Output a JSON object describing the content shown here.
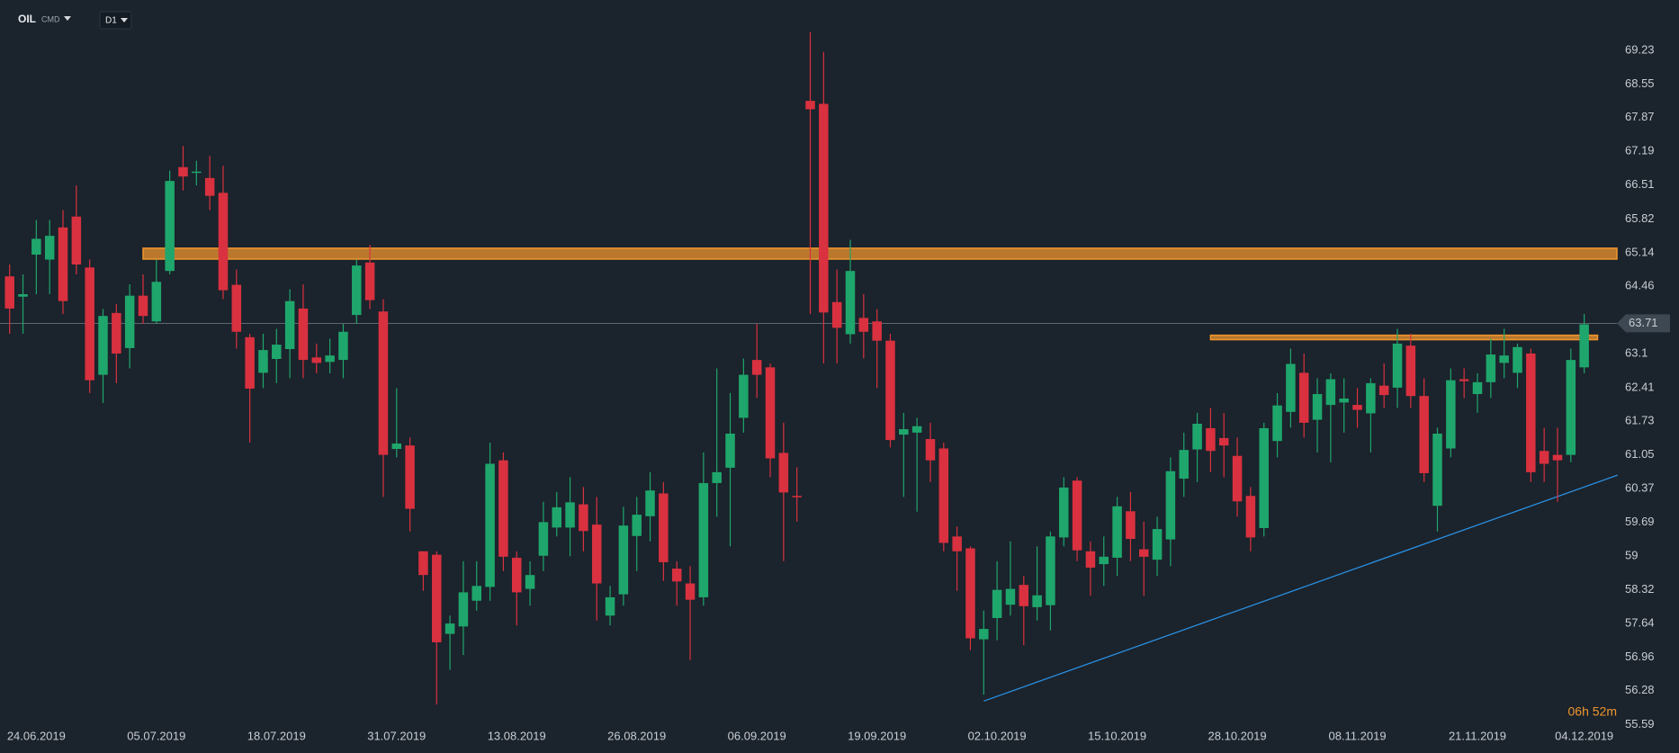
{
  "header": {
    "symbol": "OIL",
    "market": "CMD",
    "timeframe": "D1"
  },
  "chart_data": {
    "type": "candlestick",
    "categories": [
      null,
      null,
      "24.06.2019",
      null,
      null,
      null,
      null,
      null,
      null,
      null,
      null,
      "05.07.2019",
      null,
      null,
      null,
      null,
      null,
      null,
      null,
      null,
      "18.07.2019",
      null,
      null,
      null,
      null,
      null,
      null,
      null,
      null,
      "31.07.2019",
      null,
      null,
      null,
      null,
      null,
      null,
      null,
      null,
      "13.08.2019",
      null,
      null,
      null,
      null,
      null,
      null,
      null,
      null,
      "26.08.2019",
      null,
      null,
      null,
      null,
      null,
      null,
      null,
      null,
      "06.09.2019",
      null,
      null,
      null,
      null,
      null,
      null,
      null,
      null,
      "19.09.2019",
      null,
      null,
      null,
      null,
      null,
      null,
      null,
      null,
      "02.10.2019",
      null,
      null,
      null,
      null,
      null,
      null,
      null,
      null,
      "15.10.2019",
      null,
      null,
      null,
      null,
      null,
      null,
      null,
      null,
      "28.10.2019",
      null,
      null,
      null,
      null,
      null,
      null,
      null,
      null,
      "08.11.2019",
      null,
      null,
      null,
      null,
      null,
      null,
      null,
      null,
      "21.11.2019",
      null,
      null,
      null,
      null,
      null,
      null,
      null,
      "04.12.2019"
    ],
    "open": [
      64.66,
      64.25,
      65.1,
      65.0,
      65.65,
      65.87,
      64.84,
      62.67,
      63.92,
      63.21,
      64.27,
      63.75,
      64.77,
      66.87,
      66.78,
      66.65,
      66.35,
      64.49,
      63.43,
      62.71,
      62.99,
      63.19,
      64.01,
      63.02,
      62.93,
      62.97,
      63.88,
      64.94,
      63.95,
      61.17,
      61.24,
      59.1,
      59.03,
      57.43,
      57.58,
      58.1,
      58.38,
      60.94,
      58.97,
      58.34,
      59.01,
      59.58,
      59.58,
      60.05,
      59.64,
      57.8,
      58.23,
      59.41,
      59.81,
      60.27,
      58.75,
      58.45,
      58.17,
      60.48,
      60.79,
      61.8,
      62.97,
      62.82,
      61.09,
      60.22,
      68.21,
      68.15,
      64.14,
      63.49,
      63.82,
      63.75,
      63.36,
      61.46,
      61.5,
      61.37,
      61.18,
      59.4,
      59.16,
      57.32,
      57.75,
      58.02,
      58.42,
      57.97,
      58.01,
      59.38,
      60.53,
      59.1,
      58.84,
      58.97,
      59.91,
      59.14,
      58.93,
      59.34,
      60.57,
      61.16,
      61.59,
      61.39,
      61.03,
      60.22,
      59.57,
      61.33,
      61.92,
      62.71,
      61.76,
      62.06,
      62.11,
      62.06,
      61.89,
      62.45,
      62.41,
      63.26,
      62.24,
      60.02,
      61.18,
      62.58,
      62.28,
      62.52,
      62.91,
      62.71,
      63.1,
      61.13,
      61.05,
      61.05,
      62.82
    ],
    "high": [
      64.9,
      64.7,
      65.8,
      65.8,
      66.0,
      66.5,
      65.0,
      64.0,
      64.1,
      64.5,
      64.7,
      65.0,
      66.8,
      67.3,
      67.0,
      67.1,
      66.9,
      64.8,
      63.5,
      63.5,
      63.6,
      64.4,
      64.5,
      63.3,
      63.4,
      63.7,
      65.0,
      65.3,
      64.2,
      62.4,
      61.4,
      59.1,
      59.1,
      57.8,
      58.9,
      58.9,
      61.3,
      61.1,
      59.1,
      58.9,
      60.1,
      60.3,
      60.6,
      60.4,
      60.2,
      58.4,
      60.0,
      60.2,
      60.7,
      60.5,
      58.9,
      58.8,
      61.1,
      62.8,
      62.3,
      63.0,
      63.7,
      62.9,
      61.7,
      60.8,
      69.6,
      69.2,
      64.8,
      65.4,
      64.3,
      64.0,
      63.5,
      61.9,
      61.8,
      61.7,
      61.3,
      59.6,
      59.2,
      57.9,
      58.9,
      59.3,
      58.6,
      59.2,
      59.5,
      60.6,
      60.6,
      59.3,
      59.4,
      60.2,
      60.3,
      59.7,
      59.8,
      61.0,
      61.5,
      61.9,
      62.0,
      61.9,
      61.4,
      60.4,
      61.7,
      62.3,
      63.2,
      63.1,
      62.6,
      62.7,
      62.6,
      62.4,
      62.6,
      62.9,
      63.6,
      63.5,
      62.6,
      61.6,
      62.8,
      62.8,
      62.7,
      63.4,
      63.6,
      63.3,
      63.2,
      61.6,
      61.6,
      63.2,
      63.9
    ],
    "low": [
      63.5,
      63.5,
      64.3,
      64.3,
      63.9,
      64.7,
      62.3,
      62.1,
      62.5,
      62.8,
      63.7,
      63.7,
      64.7,
      66.4,
      66.5,
      66.0,
      64.2,
      63.2,
      61.3,
      62.4,
      62.5,
      62.6,
      62.6,
      62.7,
      62.7,
      62.6,
      63.7,
      64.0,
      60.2,
      61.0,
      59.5,
      58.3,
      56.0,
      56.7,
      57.0,
      57.9,
      58.1,
      58.7,
      57.6,
      58.0,
      58.7,
      59.4,
      59.0,
      59.1,
      57.7,
      57.6,
      58.0,
      58.7,
      59.3,
      58.5,
      58.0,
      56.9,
      58.0,
      59.8,
      59.2,
      61.5,
      62.2,
      60.6,
      58.9,
      59.7,
      63.9,
      62.9,
      62.9,
      63.3,
      63.0,
      62.4,
      61.2,
      60.2,
      59.9,
      60.5,
      59.1,
      58.3,
      57.1,
      56.2,
      57.3,
      57.8,
      57.2,
      57.7,
      57.5,
      59.2,
      58.9,
      58.2,
      58.4,
      58.6,
      58.9,
      58.2,
      58.6,
      58.8,
      60.2,
      60.5,
      60.7,
      60.6,
      59.8,
      59.1,
      59.4,
      61.0,
      61.6,
      61.4,
      61.1,
      60.9,
      61.5,
      61.6,
      61.1,
      62.0,
      62.0,
      62.0,
      60.5,
      59.5,
      61.0,
      62.2,
      61.9,
      62.2,
      62.6,
      62.4,
      60.5,
      60.5,
      60.1,
      60.9,
      62.7
    ],
    "close": [
      64.01,
      64.3,
      65.42,
      65.48,
      64.16,
      64.9,
      62.56,
      63.86,
      63.1,
      64.27,
      63.86,
      64.55,
      66.59,
      66.68,
      66.78,
      66.29,
      64.38,
      63.54,
      62.39,
      63.17,
      63.28,
      64.16,
      62.97,
      62.91,
      63.06,
      63.54,
      64.88,
      64.18,
      61.05,
      61.28,
      59.96,
      58.62,
      57.26,
      57.64,
      58.27,
      58.4,
      60.87,
      58.99,
      58.27,
      58.62,
      59.69,
      59.99,
      60.09,
      59.51,
      58.45,
      58.17,
      59.62,
      59.84,
      60.33,
      58.88,
      58.49,
      58.12,
      60.48,
      60.7,
      61.48,
      62.67,
      62.67,
      60.98,
      60.29,
      60.2,
      68.04,
      63.93,
      63.62,
      64.77,
      63.54,
      63.36,
      61.35,
      61.57,
      61.63,
      60.94,
      59.27,
      59.1,
      57.34,
      57.53,
      58.32,
      58.34,
      57.99,
      58.21,
      59.4,
      60.39,
      59.12,
      58.77,
      58.99,
      60.01,
      59.35,
      58.99,
      59.55,
      60.72,
      61.15,
      61.68,
      61.13,
      61.24,
      60.11,
      59.38,
      61.59,
      62.05,
      62.89,
      61.7,
      62.28,
      62.58,
      62.19,
      61.96,
      62.5,
      62.26,
      63.3,
      62.24,
      60.68,
      61.48,
      62.56,
      62.54,
      62.52,
      63.08,
      63.06,
      63.23,
      60.7,
      60.87,
      60.94,
      62.97,
      63.69
    ],
    "up_color": "#1fa66c",
    "down_color": "#d9313f",
    "ylim": [
      55.53,
      70.25
    ],
    "yticks": [
      69.23,
      68.55,
      67.87,
      67.19,
      66.51,
      65.82,
      65.14,
      64.46,
      63.1,
      62.41,
      61.73,
      61.05,
      60.37,
      59.69,
      59.0,
      58.32,
      57.64,
      56.96,
      56.28,
      55.59
    ],
    "grid": false,
    "last_price": 63.71,
    "zones": [
      {
        "start": 10,
        "end": 120.5,
        "low": 65.01,
        "high": 65.23
      },
      {
        "start": 90,
        "end": 119,
        "low": 63.38,
        "high": 63.47
      }
    ],
    "zone_color": "#f0962e",
    "trendline": {
      "x": [
        73,
        120.5
      ],
      "y": [
        56.07,
        60.64
      ],
      "color": "#2a8fe0"
    },
    "countdown": "06h 52m"
  }
}
